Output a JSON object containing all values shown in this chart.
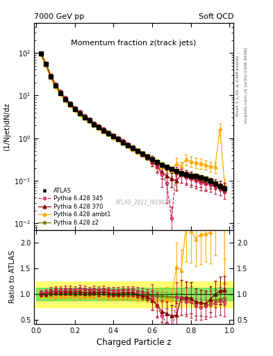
{
  "title_main": "Momentum fraction z(track jets)",
  "top_left_label": "7000 GeV pp",
  "top_right_label": "Soft QCD",
  "right_label_top": "Rivet 3.1.10, ≥ 2.6M events",
  "right_label_bottom": "mcplots.cern.ch [arXiv:1306.3436]",
  "xlabel": "Charged Particle z",
  "ylabel_main": "(1/Njet)dN/dz",
  "ylabel_ratio": "Ratio to ATLAS",
  "watermark": "ATLAS_2011_I919017",
  "atlas_color": "#000000",
  "p345_color": "#cc2255",
  "p370_color": "#880000",
  "pambt1_color": "#ffaa00",
  "pz2_color": "#777700",
  "atlas_z": [
    0.025,
    0.05,
    0.075,
    0.1,
    0.125,
    0.15,
    0.175,
    0.2,
    0.225,
    0.25,
    0.275,
    0.3,
    0.325,
    0.35,
    0.375,
    0.4,
    0.425,
    0.45,
    0.475,
    0.5,
    0.525,
    0.55,
    0.575,
    0.6,
    0.625,
    0.65,
    0.675,
    0.7,
    0.725,
    0.75,
    0.775,
    0.8,
    0.825,
    0.85,
    0.875,
    0.9,
    0.925,
    0.95,
    0.975
  ],
  "atlas_y": [
    95,
    55,
    28,
    17,
    11.5,
    8.2,
    6.2,
    4.8,
    3.8,
    3.1,
    2.6,
    2.1,
    1.8,
    1.5,
    1.3,
    1.1,
    0.95,
    0.8,
    0.68,
    0.58,
    0.5,
    0.43,
    0.37,
    0.32,
    0.28,
    0.24,
    0.21,
    0.19,
    0.17,
    0.15,
    0.14,
    0.13,
    0.13,
    0.12,
    0.11,
    0.1,
    0.085,
    0.075,
    0.065
  ],
  "atlas_yerr": [
    4,
    2.5,
    1.5,
    0.9,
    0.6,
    0.4,
    0.3,
    0.25,
    0.2,
    0.16,
    0.13,
    0.11,
    0.09,
    0.08,
    0.07,
    0.06,
    0.05,
    0.045,
    0.04,
    0.035,
    0.03,
    0.026,
    0.023,
    0.02,
    0.018,
    0.016,
    0.014,
    0.013,
    0.012,
    0.011,
    0.01,
    0.009,
    0.009,
    0.009,
    0.008,
    0.008,
    0.007,
    0.007,
    0.006
  ],
  "p345_y": [
    97,
    57,
    30,
    18.5,
    12.5,
    9.0,
    6.8,
    5.2,
    4.2,
    3.4,
    2.8,
    2.3,
    1.95,
    1.65,
    1.4,
    1.18,
    1.02,
    0.87,
    0.74,
    0.63,
    0.53,
    0.45,
    0.38,
    0.3,
    0.22,
    0.14,
    0.09,
    0.013,
    0.16,
    0.14,
    0.12,
    0.11,
    0.1,
    0.09,
    0.085,
    0.08,
    0.07,
    0.065,
    0.055
  ],
  "p345_yerr": [
    5,
    3,
    1.8,
    1.1,
    0.7,
    0.5,
    0.4,
    0.3,
    0.25,
    0.2,
    0.16,
    0.13,
    0.11,
    0.09,
    0.08,
    0.07,
    0.06,
    0.05,
    0.045,
    0.04,
    0.035,
    0.03,
    0.027,
    0.08,
    0.07,
    0.07,
    0.06,
    0.012,
    0.05,
    0.05,
    0.04,
    0.04,
    0.035,
    0.03,
    0.028,
    0.025,
    0.022,
    0.02,
    0.018
  ],
  "p370_y": [
    96,
    56,
    29,
    18,
    12,
    8.6,
    6.5,
    5.0,
    4.0,
    3.2,
    2.7,
    2.2,
    1.85,
    1.58,
    1.33,
    1.12,
    0.97,
    0.82,
    0.7,
    0.6,
    0.5,
    0.42,
    0.35,
    0.28,
    0.22,
    0.16,
    0.13,
    0.11,
    0.1,
    0.14,
    0.13,
    0.12,
    0.11,
    0.1,
    0.09,
    0.09,
    0.085,
    0.08,
    0.07
  ],
  "p370_yerr": [
    5,
    3,
    1.8,
    1.1,
    0.7,
    0.5,
    0.4,
    0.3,
    0.25,
    0.2,
    0.16,
    0.13,
    0.11,
    0.09,
    0.08,
    0.07,
    0.06,
    0.05,
    0.045,
    0.04,
    0.035,
    0.03,
    0.027,
    0.06,
    0.06,
    0.05,
    0.05,
    0.04,
    0.04,
    0.05,
    0.045,
    0.04,
    0.035,
    0.03,
    0.028,
    0.025,
    0.022,
    0.02,
    0.018
  ],
  "pambt1_y": [
    94,
    54,
    27,
    16.5,
    11.2,
    8.0,
    6.0,
    4.6,
    3.7,
    3.0,
    2.5,
    2.05,
    1.73,
    1.45,
    1.24,
    1.04,
    0.9,
    0.76,
    0.65,
    0.55,
    0.47,
    0.4,
    0.34,
    0.29,
    0.25,
    0.21,
    0.19,
    0.17,
    0.26,
    0.22,
    0.32,
    0.29,
    0.27,
    0.26,
    0.24,
    0.22,
    0.21,
    1.65,
    0.08
  ],
  "pambt1_yerr": [
    5,
    3,
    1.8,
    1.1,
    0.7,
    0.5,
    0.4,
    0.3,
    0.25,
    0.2,
    0.16,
    0.13,
    0.11,
    0.09,
    0.08,
    0.07,
    0.06,
    0.05,
    0.045,
    0.04,
    0.035,
    0.03,
    0.027,
    0.06,
    0.06,
    0.05,
    0.05,
    0.04,
    0.08,
    0.06,
    0.09,
    0.08,
    0.07,
    0.07,
    0.06,
    0.06,
    0.06,
    0.5,
    0.03
  ],
  "pz2_y": [
    95,
    55,
    28,
    17,
    11.5,
    8.2,
    6.2,
    4.8,
    3.8,
    3.1,
    2.6,
    2.1,
    1.78,
    1.5,
    1.28,
    1.08,
    0.93,
    0.78,
    0.67,
    0.57,
    0.49,
    0.42,
    0.36,
    0.31,
    0.27,
    0.23,
    0.2,
    0.18,
    0.16,
    0.14,
    0.13,
    0.12,
    0.11,
    0.1,
    0.09,
    0.085,
    0.075,
    0.068,
    0.06
  ],
  "pz2_yerr": [
    5,
    3,
    1.8,
    1.1,
    0.7,
    0.5,
    0.4,
    0.3,
    0.25,
    0.2,
    0.16,
    0.13,
    0.11,
    0.09,
    0.08,
    0.07,
    0.06,
    0.05,
    0.045,
    0.04,
    0.035,
    0.03,
    0.027,
    0.024,
    0.022,
    0.02,
    0.018,
    0.016,
    0.014,
    0.012,
    0.011,
    0.01,
    0.009,
    0.009,
    0.008,
    0.008,
    0.007,
    0.007,
    0.006
  ],
  "ylim_main": [
    0.007,
    500
  ],
  "ylim_ratio": [
    0.42,
    2.25
  ],
  "ratio_yticks": [
    0.5,
    1.0,
    1.5,
    2.0
  ],
  "figsize": [
    3.93,
    5.12
  ],
  "dpi": 100
}
